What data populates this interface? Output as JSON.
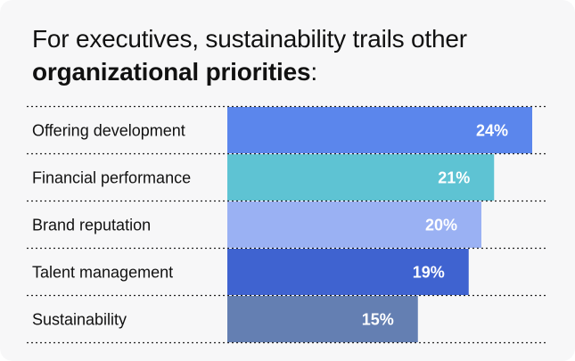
{
  "header": {
    "title_part1": "For executives, sustainability trails other ",
    "title_bold": "organizational priorities",
    "title_part2": ":"
  },
  "chart_data": {
    "type": "bar",
    "orientation": "horizontal",
    "title": "For executives, sustainability trails other organizational priorities:",
    "categories": [
      "Offering development",
      "Financial performance",
      "Brand reputation",
      "Talent management",
      "Sustainability"
    ],
    "values": [
      24,
      21,
      20,
      19,
      15
    ],
    "value_labels": [
      "24%",
      "21%",
      "20%",
      "19%",
      "15%"
    ],
    "unit": "%",
    "xlim": [
      0,
      24
    ],
    "colors": [
      "#5b86ec",
      "#5ec3d3",
      "#9ab1f3",
      "#3f63d0",
      "#647fb2"
    ],
    "grid": false,
    "legend": "none"
  }
}
